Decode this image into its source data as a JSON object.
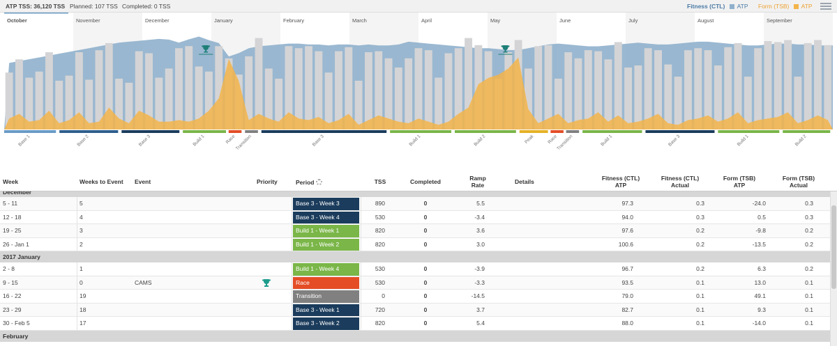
{
  "stats": {
    "atp_tss": "ATP TSS: 36,120 TSS",
    "planned": "Planned: 107 TSS",
    "completed": "Completed: 0 TSS"
  },
  "legend": {
    "fitness_label": "Fitness (CTL)",
    "fitness_atp": "ATP",
    "form_label": "Form (TSB)",
    "form_atp": "ATP"
  },
  "colors": {
    "fitness": "#8fb0cc",
    "form": "#f3b44a",
    "bars": "#d4d4d6",
    "period_base": "#1b3c5c",
    "period_build": "#7ab648",
    "period_race": "#e44d26",
    "period_transition": "#808080",
    "period_peak": "#e5b125"
  },
  "months": [
    "October",
    "November",
    "December",
    "January",
    "February",
    "March",
    "April",
    "May",
    "June",
    "July",
    "August",
    "September"
  ],
  "period_labels": [
    "Base 1",
    "Base 2",
    "Base 3",
    "Build 1",
    "Race",
    "Transition",
    "Base 3",
    "Build 1",
    "Build 2",
    "Peak",
    "Race",
    "Transition",
    "Build 1",
    "Base 3",
    "Build 1",
    "Build 2"
  ],
  "chart_data": {
    "type": "bar",
    "weekly_tss": [
      560,
      690,
      510,
      570,
      760,
      480,
      530,
      760,
      490,
      780,
      850,
      500,
      460,
      770,
      750,
      510,
      600,
      800,
      820,
      620,
      570,
      820,
      700,
      540,
      720,
      900,
      600,
      500,
      820,
      800,
      820,
      770,
      560,
      770,
      810,
      480,
      760,
      770,
      700,
      610,
      700,
      800,
      780,
      510,
      750,
      800,
      900,
      830,
      770,
      500,
      760,
      880,
      600,
      820,
      830,
      500,
      760,
      700,
      780,
      770,
      690,
      860,
      610,
      630,
      800,
      780,
      640,
      520,
      780,
      800,
      780,
      630,
      810,
      850,
      520,
      800,
      870,
      860,
      880,
      520,
      850,
      880,
      830
    ],
    "fitness_ctl": [
      72,
      74,
      76,
      78,
      80,
      82,
      84,
      86,
      88,
      90,
      92,
      94,
      95,
      96,
      97,
      98,
      97.3,
      94,
      97.6,
      100.6,
      96.7,
      93.5,
      79,
      82.7,
      88,
      90,
      91,
      92,
      93,
      93,
      92,
      92,
      91,
      92,
      92,
      91,
      92,
      91,
      91,
      92,
      95,
      94,
      93,
      92,
      91,
      90,
      89,
      88,
      88,
      87,
      86,
      86,
      88,
      90,
      92,
      93,
      92,
      91,
      90,
      90,
      91,
      92,
      93,
      94,
      93,
      92,
      92,
      93,
      94,
      95,
      95,
      94,
      93,
      92,
      91,
      91,
      92,
      93,
      93,
      92,
      92,
      91,
      91
    ],
    "form_tsb": [
      14,
      20,
      10,
      12,
      24,
      8,
      12,
      22,
      8,
      10,
      28,
      14,
      8,
      24,
      18,
      10,
      10,
      12,
      10,
      14,
      24,
      40,
      90,
      62,
      12,
      20,
      14,
      10,
      22,
      14,
      12,
      16,
      8,
      12,
      20,
      6,
      12,
      18,
      14,
      10,
      8,
      14,
      10,
      6,
      10,
      20,
      28,
      58,
      66,
      70,
      78,
      92,
      26,
      8,
      14,
      20,
      8,
      12,
      14,
      22,
      10,
      18,
      8,
      10,
      14,
      20,
      8,
      6,
      12,
      14,
      18,
      10,
      14,
      22,
      8,
      12,
      14,
      16,
      22,
      8,
      12,
      18,
      12
    ],
    "event_weeks": [
      22,
      52
    ]
  },
  "table": {
    "headers": {
      "week": "Week",
      "weeks_to_event": "Weeks to Event",
      "event": "Event",
      "priority": "Priority",
      "period": "Period",
      "tss": "TSS",
      "completed": "Completed",
      "ramp_rate_1": "Ramp",
      "ramp_rate_2": "Rate",
      "details": "Details",
      "fitness_atp_1": "Fitness (CTL)",
      "fitness_atp_2": "ATP",
      "fitness_actual_1": "Fitness (CTL)",
      "fitness_actual_2": "Actual",
      "form_atp_1": "Form (TSB)",
      "form_atp_2": "ATP",
      "form_actual_1": "Form (TSB)",
      "form_actual_2": "Actual"
    },
    "sections": [
      {
        "title": "December",
        "partial": true,
        "rows": [
          {
            "week": "5 - 11",
            "wte": "5",
            "event": "",
            "priority": "",
            "period": "Base 3 - Week 3",
            "ptype": "base",
            "tss": "890",
            "completed": "0",
            "ramp": "5.5",
            "details": "",
            "fit_atp": "97.3",
            "fit_act": "0.3",
            "form_atp": "-24.0",
            "form_act": "0.3"
          },
          {
            "week": "12 - 18",
            "wte": "4",
            "event": "",
            "priority": "",
            "period": "Base 3 - Week 4",
            "ptype": "base",
            "tss": "530",
            "completed": "0",
            "ramp": "-3.4",
            "details": "",
            "fit_atp": "94.0",
            "fit_act": "0.3",
            "form_atp": "0.5",
            "form_act": "0.3"
          },
          {
            "week": "19 - 25",
            "wte": "3",
            "event": "",
            "priority": "",
            "period": "Build 1 - Week 1",
            "ptype": "build",
            "tss": "820",
            "completed": "0",
            "ramp": "3.6",
            "details": "",
            "fit_atp": "97.6",
            "fit_act": "0.2",
            "form_atp": "-9.8",
            "form_act": "0.2"
          },
          {
            "week": "26 - Jan 1",
            "wte": "2",
            "event": "",
            "priority": "",
            "period": "Build 1 - Week 2",
            "ptype": "build",
            "tss": "820",
            "completed": "0",
            "ramp": "3.0",
            "details": "",
            "fit_atp": "100.6",
            "fit_act": "0.2",
            "form_atp": "-13.5",
            "form_act": "0.2"
          }
        ]
      },
      {
        "title": "2017 January",
        "partial": false,
        "rows": [
          {
            "week": "2 - 8",
            "wte": "1",
            "event": "",
            "priority": "",
            "period": "Build 1 - Week 4",
            "ptype": "build",
            "tss": "530",
            "completed": "0",
            "ramp": "-3.9",
            "details": "",
            "fit_atp": "96.7",
            "fit_act": "0.2",
            "form_atp": "6.3",
            "form_act": "0.2"
          },
          {
            "week": "9 - 15",
            "wte": "0",
            "event": "CAMS",
            "priority": "trophy",
            "period": "Race",
            "ptype": "race",
            "tss": "530",
            "completed": "0",
            "ramp": "-3.3",
            "details": "",
            "fit_atp": "93.5",
            "fit_act": "0.1",
            "form_atp": "13.0",
            "form_act": "0.1"
          },
          {
            "week": "16 - 22",
            "wte": "19",
            "event": "",
            "priority": "",
            "period": "Transition",
            "ptype": "transition",
            "tss": "0",
            "completed": "0",
            "ramp": "-14.5",
            "details": "",
            "fit_atp": "79.0",
            "fit_act": "0.1",
            "form_atp": "49.1",
            "form_act": "0.1"
          },
          {
            "week": "23 - 29",
            "wte": "18",
            "event": "",
            "priority": "",
            "period": "Base 3 - Week 1",
            "ptype": "base",
            "tss": "720",
            "completed": "0",
            "ramp": "3.7",
            "details": "",
            "fit_atp": "82.7",
            "fit_act": "0.1",
            "form_atp": "9.3",
            "form_act": "0.1"
          },
          {
            "week": "30 - Feb 5",
            "wte": "17",
            "event": "",
            "priority": "",
            "period": "Base 3 - Week 2",
            "ptype": "base",
            "tss": "820",
            "completed": "0",
            "ramp": "5.4",
            "details": "",
            "fit_atp": "88.0",
            "fit_act": "0.1",
            "form_atp": "-14.0",
            "form_act": "0.1"
          }
        ]
      },
      {
        "title": "February",
        "partial": false,
        "rows": []
      }
    ]
  }
}
